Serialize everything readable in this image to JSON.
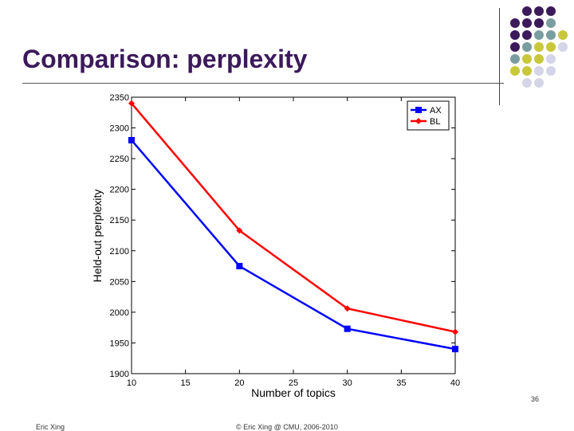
{
  "slide": {
    "title": "Comparison: perplexity",
    "page_number": "36",
    "footer_left": "Eric Xing",
    "footer_center": "© Eric Xing @ CMU, 2006-2010"
  },
  "colors": {
    "title": "#3b1a5a",
    "dot_purple": "#3b1a5a",
    "dot_teal": "#7a9ea0",
    "dot_olive": "#c8c83a",
    "dot_lavender": "#d5d5e8"
  },
  "chart_data": {
    "type": "line",
    "title": "",
    "xlabel": "Number of topics",
    "ylabel": "Held-out perplexity",
    "x": [
      10,
      20,
      30,
      40
    ],
    "series": [
      {
        "name": "AX",
        "color": "#0000ff",
        "marker": "square",
        "values": [
          2280,
          2075,
          1973,
          1940
        ]
      },
      {
        "name": "BL",
        "color": "#ff0000",
        "marker": "diamond",
        "values": [
          2340,
          2133,
          2006,
          1968
        ]
      }
    ],
    "xlim": [
      10,
      40
    ],
    "ylim": [
      1900,
      2350
    ],
    "xticks": [
      "10",
      "15",
      "20",
      "25",
      "30",
      "35",
      "40"
    ],
    "yticks": [
      "1900",
      "1950",
      "2000",
      "2050",
      "2100",
      "2150",
      "2200",
      "2250",
      "2300",
      "2350"
    ],
    "grid": false,
    "legend_position": "top-right"
  }
}
